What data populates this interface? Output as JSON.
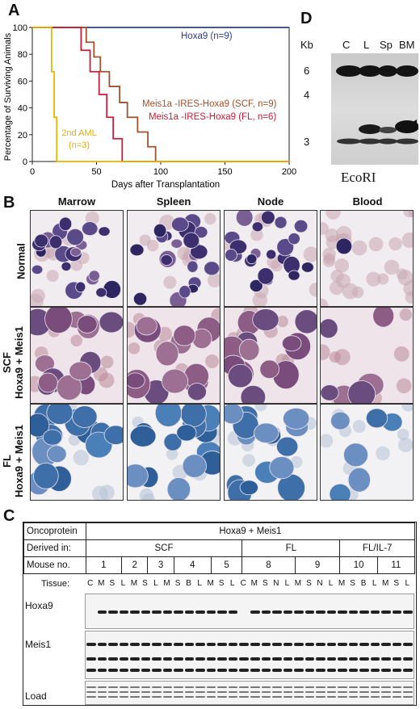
{
  "panels": {
    "A": "A",
    "B": "B",
    "C": "C",
    "D": "D"
  },
  "panelA": {
    "ylabel": "Percentage of Surviving Animals",
    "xlabel": "Days after Transplantation",
    "annotations": {
      "hoxa9": "Hoxa9 (n=9)",
      "scf": "Meis1a -IRES-Hoxa9 (SCF, n=9)",
      "fl": "Meis1a -IRES-Hoxa9 (FL, n=6)",
      "aml_line1": "2nd AML",
      "aml_line2": "(n=3)"
    }
  },
  "chart_data": {
    "type": "line",
    "subtype": "step (Kaplan-Meier survival)",
    "title": "",
    "xlabel": "Days after Transplantation",
    "ylabel": "Percentage of Surviving Animals",
    "xlim": [
      0,
      200
    ],
    "ylim": [
      0,
      100
    ],
    "xticks": [
      0,
      50,
      100,
      150,
      200
    ],
    "yticks": [
      0,
      20,
      40,
      60,
      80,
      100
    ],
    "series": [
      {
        "name": "Hoxa9 (n=9)",
        "color": "#2b3f8f",
        "x": [
          0,
          200
        ],
        "y": [
          100,
          100
        ]
      },
      {
        "name": "Meis1a -IRES-Hoxa9 (SCF, n=9)",
        "color": "#a0522d",
        "x": [
          0,
          42,
          48,
          53,
          60,
          68,
          74,
          82,
          90,
          96,
          200
        ],
        "y": [
          100,
          89,
          78,
          67,
          56,
          44,
          33,
          22,
          11,
          0,
          0
        ]
      },
      {
        "name": "Meis1a -IRES-Hoxa9 (FL, n=6)",
        "color": "#c41e3a",
        "x": [
          0,
          38,
          45,
          52,
          58,
          63,
          70,
          200
        ],
        "y": [
          100,
          83,
          67,
          50,
          33,
          17,
          0,
          0
        ]
      },
      {
        "name": "2nd AML (n=3)",
        "color": "#e8b800",
        "x": [
          0,
          15,
          17,
          19,
          200
        ],
        "y": [
          100,
          67,
          33,
          0,
          0
        ]
      }
    ]
  },
  "panelB": {
    "columns": [
      "Marrow",
      "Spleen",
      "Node",
      "Blood"
    ],
    "rows": [
      {
        "line1": "Normal",
        "line2": ""
      },
      {
        "line1": "SCF",
        "line2": "Hoxa9 + Meis1"
      },
      {
        "line1": "FL",
        "line2": "Hoxa9 + Meis1"
      }
    ]
  },
  "panelC": {
    "row_oncoprotein_label": "Oncoprotein",
    "oncoprotein_value": "Hoxa9 + Meis1",
    "row_derived_label": "Derived in:",
    "derived_values": [
      "SCF",
      "FL",
      "FL/IL-7"
    ],
    "row_mouse_label": "Mouse no.",
    "mice": [
      "1",
      "2",
      "3",
      "4",
      "5",
      "8",
      "9",
      "10",
      "11"
    ],
    "tissue_label": "Tissue:",
    "tissue_lanes": [
      "C",
      "M",
      "S",
      "L",
      "M",
      "S",
      "L",
      "M",
      "S",
      "B",
      "L",
      "M",
      "S",
      "L",
      "C",
      "M",
      "S",
      "N",
      "L",
      "M",
      "S",
      "N",
      "L",
      "M",
      "S",
      "B",
      "L",
      "M",
      "S",
      "L"
    ],
    "blot_labels": [
      "Hoxa9",
      "Meis1",
      "Load"
    ]
  },
  "panelD": {
    "kb_label": "Kb",
    "lanes": [
      "C",
      "L",
      "Sp",
      "BM"
    ],
    "markers": [
      "6",
      "4",
      "3"
    ],
    "enzyme": "EcoRI"
  }
}
